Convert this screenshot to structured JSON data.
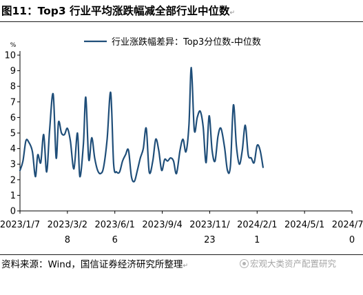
{
  "figure": {
    "title": "图11：Top3 行业平均涨跌幅减全部行业中位数",
    "source": "资料来源：Wind，国信证券经济研究所整理",
    "watermark": "宏观大类资产配置研究",
    "edit_mark": "↵"
  },
  "chart_data": {
    "type": "line",
    "title": "",
    "xlabel": "",
    "ylabel": "",
    "y_unit": "%",
    "ylim": [
      0,
      10
    ],
    "yticks": [
      0,
      1,
      2,
      3,
      4,
      5,
      6,
      7,
      8,
      9,
      10
    ],
    "grid": false,
    "legend_position": "top-center",
    "line_color": "#1f4e79",
    "x_start": "2023/1/7",
    "x_end": "2024/7/20",
    "x_tick_labels": [
      {
        "date": "2023/1/7",
        "label": "2023/1/7"
      },
      {
        "date": "2023/3/28",
        "label": "2023/3/2\n8"
      },
      {
        "date": "2023/6/16",
        "label": "2023/6/1\n6"
      },
      {
        "date": "2023/9/4",
        "label": "2023/9/4"
      },
      {
        "date": "2023/11/23",
        "label": "2023/11/\n23"
      },
      {
        "date": "2024/2/11",
        "label": "2024/2/1\n1"
      },
      {
        "date": "2024/5/1",
        "label": "2024/5/1"
      },
      {
        "date": "2024/7/20",
        "label": "2024/7/2\n0"
      }
    ],
    "series": [
      {
        "name": "行业涨跌幅差异：Top3分位数-中位数",
        "points": [
          [
            "2023/1/7",
            2.6
          ],
          [
            "2023/1/12",
            3.2
          ],
          [
            "2023/1/17",
            4.5
          ],
          [
            "2023/1/22",
            4.4
          ],
          [
            "2023/1/28",
            3.8
          ],
          [
            "2023/2/2",
            2.2
          ],
          [
            "2023/2/6",
            3.6
          ],
          [
            "2023/2/11",
            3.1
          ],
          [
            "2023/2/16",
            4.9
          ],
          [
            "2023/2/21",
            2.5
          ],
          [
            "2023/2/26",
            5.2
          ],
          [
            "2023/3/4",
            7.5
          ],
          [
            "2023/3/9",
            3.4
          ],
          [
            "2023/3/13",
            5.7
          ],
          [
            "2023/3/18",
            5.0
          ],
          [
            "2023/3/23",
            4.9
          ],
          [
            "2023/3/28",
            5.3
          ],
          [
            "2023/4/2",
            4.5
          ],
          [
            "2023/4/8",
            2.7
          ],
          [
            "2023/4/14",
            5.0
          ],
          [
            "2023/4/18",
            2.2
          ],
          [
            "2023/4/24",
            4.3
          ],
          [
            "2023/4/28",
            7.3
          ],
          [
            "2023/5/3",
            3.3
          ],
          [
            "2023/5/8",
            4.7
          ],
          [
            "2023/5/13",
            3.4
          ],
          [
            "2023/5/18",
            2.6
          ],
          [
            "2023/5/23",
            2.4
          ],
          [
            "2023/5/28",
            2.8
          ],
          [
            "2023/6/3",
            4.6
          ],
          [
            "2023/6/9",
            7.6
          ],
          [
            "2023/6/14",
            3.0
          ],
          [
            "2023/6/19",
            2.5
          ],
          [
            "2023/6/24",
            2.5
          ],
          [
            "2023/6/29",
            3.2
          ],
          [
            "2023/7/4",
            3.6
          ],
          [
            "2023/7/9",
            3.9
          ],
          [
            "2023/7/14",
            2.2
          ],
          [
            "2023/7/19",
            1.9
          ],
          [
            "2023/7/24",
            2.6
          ],
          [
            "2023/7/29",
            3.4
          ],
          [
            "2023/8/3",
            4.0
          ],
          [
            "2023/8/8",
            5.3
          ],
          [
            "2023/8/13",
            2.5
          ],
          [
            "2023/8/19",
            3.2
          ],
          [
            "2023/8/24",
            4.6
          ],
          [
            "2023/8/29",
            3.9
          ],
          [
            "2023/9/3",
            2.6
          ],
          [
            "2023/9/8",
            3.3
          ],
          [
            "2023/9/13",
            3.2
          ],
          [
            "2023/9/18",
            3.4
          ],
          [
            "2023/9/23",
            3.2
          ],
          [
            "2023/9/28",
            2.4
          ],
          [
            "2023/10/4",
            3.9
          ],
          [
            "2023/10/9",
            4.6
          ],
          [
            "2023/10/14",
            3.8
          ],
          [
            "2023/10/19",
            5.5
          ],
          [
            "2023/10/23",
            9.2
          ],
          [
            "2023/10/28",
            5.2
          ],
          [
            "2023/11/2",
            6.0
          ],
          [
            "2023/11/7",
            6.4
          ],
          [
            "2023/11/12",
            5.4
          ],
          [
            "2023/11/17",
            3.1
          ],
          [
            "2023/11/22",
            6.1
          ],
          [
            "2023/11/27",
            3.9
          ],
          [
            "2023/12/2",
            3.2
          ],
          [
            "2023/12/7",
            4.8
          ],
          [
            "2023/12/12",
            5.3
          ],
          [
            "2023/12/18",
            4.1
          ],
          [
            "2023/12/23",
            2.6
          ],
          [
            "2023/12/28",
            2.9
          ],
          [
            "2024/1/2",
            6.8
          ],
          [
            "2024/1/7",
            4.2
          ],
          [
            "2024/1/12",
            3.0
          ],
          [
            "2024/1/17",
            3.9
          ],
          [
            "2024/1/22",
            5.5
          ],
          [
            "2024/1/27",
            3.6
          ],
          [
            "2024/2/1",
            3.4
          ],
          [
            "2024/2/6",
            3.1
          ],
          [
            "2024/2/11",
            4.2
          ],
          [
            "2024/2/16",
            3.9
          ],
          [
            "2024/2/21",
            2.8
          ]
        ]
      }
    ]
  }
}
